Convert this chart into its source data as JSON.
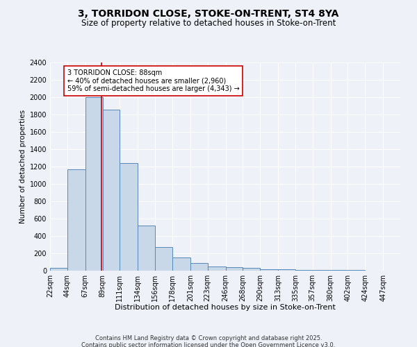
{
  "title1": "3, TORRIDON CLOSE, STOKE-ON-TRENT, ST4 8YA",
  "title2": "Size of property relative to detached houses in Stoke-on-Trent",
  "xlabel": "Distribution of detached houses by size in Stoke-on-Trent",
  "ylabel": "Number of detached properties",
  "bin_edges": [
    22,
    44,
    67,
    89,
    111,
    134,
    156,
    178,
    201,
    223,
    246,
    268,
    290,
    313,
    335,
    357,
    380,
    402,
    424,
    447,
    469
  ],
  "bar_heights": [
    30,
    1170,
    2000,
    1860,
    1240,
    520,
    275,
    150,
    90,
    45,
    40,
    35,
    20,
    15,
    10,
    8,
    5,
    5,
    3,
    3
  ],
  "bar_color": "#c8d8e8",
  "bar_edge_color": "#5588bb",
  "property_size": 88,
  "red_line_color": "#cc0000",
  "annotation_line1": "3 TORRIDON CLOSE: 88sqm",
  "annotation_line2": "← 40% of detached houses are smaller (2,960)",
  "annotation_line3": "59% of semi-detached houses are larger (4,343) →",
  "annotation_box_color": "#ffffff",
  "annotation_box_edge": "#cc0000",
  "ylim": [
    0,
    2400
  ],
  "yticks": [
    0,
    200,
    400,
    600,
    800,
    1000,
    1200,
    1400,
    1600,
    1800,
    2000,
    2200,
    2400
  ],
  "bg_color": "#eef2f8",
  "grid_color": "#ffffff",
  "footer_line1": "Contains HM Land Registry data © Crown copyright and database right 2025.",
  "footer_line2": "Contains public sector information licensed under the Open Government Licence v3.0.",
  "title1_fontsize": 10,
  "title2_fontsize": 8.5,
  "xlabel_fontsize": 8,
  "ylabel_fontsize": 7.5,
  "tick_fontsize": 7,
  "annotation_fontsize": 7,
  "footer_fontsize": 6
}
